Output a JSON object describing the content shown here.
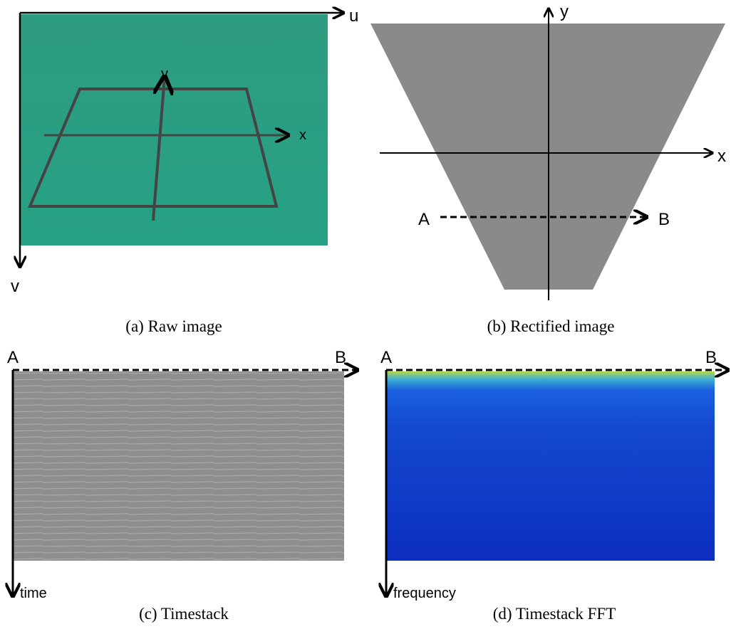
{
  "panels": [
    {
      "caption": "(a) Raw image",
      "axis_labels": [
        "u",
        "v",
        "x",
        "y"
      ]
    },
    {
      "caption": "(b) Rectified image",
      "axis_labels": [
        "y",
        "x",
        "A",
        "B"
      ]
    },
    {
      "caption": "(c) Timestack",
      "axis_labels": [
        "A",
        "B",
        "time"
      ]
    },
    {
      "caption": "(d) Timestack FFT",
      "axis_labels": [
        "A",
        "B",
        "frequency"
      ]
    }
  ]
}
